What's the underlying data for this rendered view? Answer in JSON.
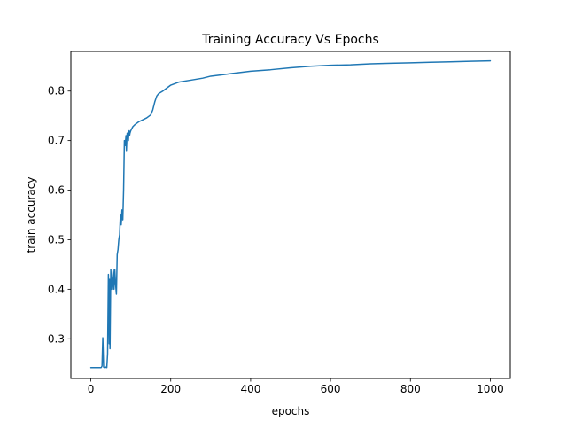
{
  "chart_data": {
    "type": "line",
    "title": "Training Accuracy Vs Epochs",
    "xlabel": "epochs",
    "ylabel": "train accuracy",
    "xlim": [
      -50,
      1050
    ],
    "ylim": [
      0.22,
      0.88
    ],
    "xticks": [
      0,
      200,
      400,
      600,
      800,
      1000
    ],
    "yticks": [
      0.3,
      0.4,
      0.5,
      0.6,
      0.7,
      0.8
    ],
    "ytick_labels": [
      "0.3",
      "0.4",
      "0.5",
      "0.6",
      "0.7",
      "0.8"
    ],
    "grid": false,
    "series": [
      {
        "color": "#1f77b4",
        "x": [
          0,
          10,
          20,
          24,
          26,
          28,
          30,
          32,
          34,
          36,
          38,
          40,
          42,
          44,
          45,
          46,
          47,
          48,
          49,
          50,
          52,
          54,
          56,
          58,
          60,
          62,
          64,
          66,
          68,
          70,
          72,
          74,
          76,
          78,
          80,
          82,
          84,
          86,
          88,
          89,
          90,
          91,
          92,
          93,
          94,
          95,
          96,
          97,
          98,
          100,
          105,
          110,
          115,
          120,
          130,
          140,
          150,
          155,
          160,
          165,
          170,
          180,
          200,
          220,
          250,
          280,
          300,
          350,
          400,
          450,
          500,
          550,
          600,
          650,
          700,
          750,
          800,
          850,
          900,
          950,
          1000
        ],
        "y": [
          0.242,
          0.242,
          0.242,
          0.242,
          0.242,
          0.245,
          0.302,
          0.243,
          0.242,
          0.242,
          0.243,
          0.242,
          0.27,
          0.43,
          0.38,
          0.29,
          0.42,
          0.28,
          0.36,
          0.44,
          0.4,
          0.42,
          0.44,
          0.4,
          0.44,
          0.41,
          0.39,
          0.47,
          0.48,
          0.5,
          0.51,
          0.55,
          0.53,
          0.56,
          0.54,
          0.6,
          0.7,
          0.69,
          0.71,
          0.68,
          0.7,
          0.715,
          0.705,
          0.71,
          0.7,
          0.715,
          0.72,
          0.71,
          0.715,
          0.72,
          0.728,
          0.732,
          0.735,
          0.738,
          0.742,
          0.746,
          0.752,
          0.762,
          0.778,
          0.79,
          0.795,
          0.8,
          0.812,
          0.818,
          0.822,
          0.826,
          0.83,
          0.835,
          0.84,
          0.843,
          0.847,
          0.85,
          0.852,
          0.853,
          0.855,
          0.856,
          0.857,
          0.858,
          0.859,
          0.86,
          0.861
        ]
      }
    ]
  }
}
